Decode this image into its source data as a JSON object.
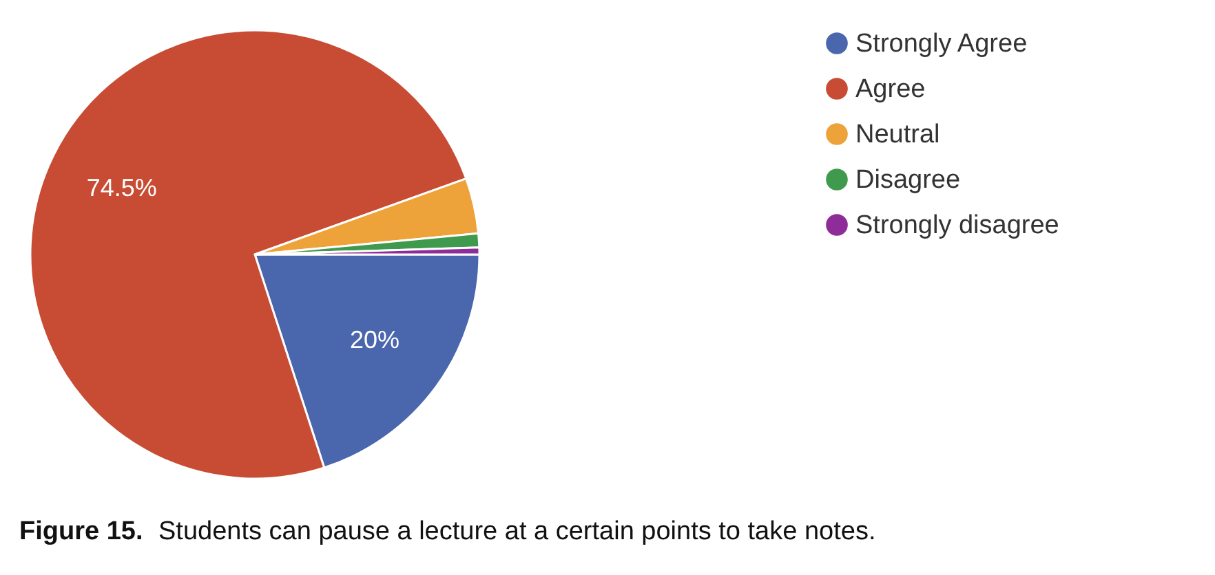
{
  "chart_data": {
    "type": "pie",
    "categories": [
      "Strongly Agree",
      "Agree",
      "Neutral",
      "Disagree",
      "Strongly disagree"
    ],
    "values": [
      20,
      74.5,
      4,
      1,
      0.5
    ],
    "colors": [
      "#4a66ad",
      "#c84b33",
      "#eea23a",
      "#3f9a4e",
      "#8e2d9a"
    ],
    "value_labels": [
      "20%",
      "74.5%",
      null,
      null,
      null
    ],
    "legend": "right",
    "annotations": [
      "Figure 15.",
      "Students can pause a lecture at a certain points to take notes."
    ]
  }
}
